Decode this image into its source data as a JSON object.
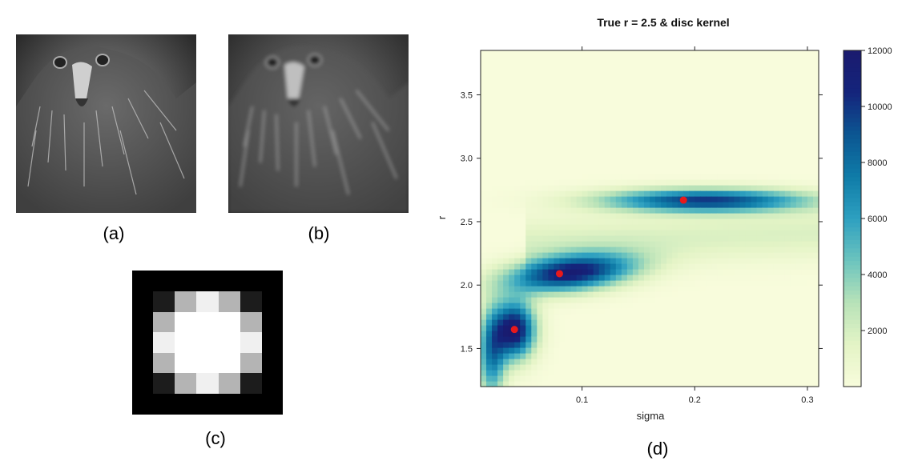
{
  "panels": {
    "a": {
      "caption": "(a)"
    },
    "b": {
      "caption": "(b)"
    },
    "c": {
      "caption": "(c)",
      "kernel_grid": [
        [
          "#1c1c1c",
          "#b4b4b4",
          "#f0f0f0",
          "#b4b4b4",
          "#1c1c1c"
        ],
        [
          "#b4b4b4",
          "#ffffff",
          "#ffffff",
          "#ffffff",
          "#b4b4b4"
        ],
        [
          "#f0f0f0",
          "#ffffff",
          "#ffffff",
          "#ffffff",
          "#f0f0f0"
        ],
        [
          "#b4b4b4",
          "#ffffff",
          "#ffffff",
          "#ffffff",
          "#b4b4b4"
        ],
        [
          "#1c1c1c",
          "#b4b4b4",
          "#f0f0f0",
          "#b4b4b4",
          "#1c1c1c"
        ]
      ]
    },
    "d": {
      "caption": "(d)"
    }
  },
  "chart_data": {
    "type": "heatmap",
    "title": "True r = 2.5 & disc kernel",
    "xlabel": "sigma",
    "ylabel": "r",
    "xlim": [
      0.01,
      0.31
    ],
    "ylim": [
      1.2,
      3.85
    ],
    "x_ticks": [
      "0.1",
      "0.2",
      "0.3"
    ],
    "x_tick_values": [
      0.1,
      0.2,
      0.3
    ],
    "y_ticks": [
      "1.5",
      "2.0",
      "2.5",
      "3.0",
      "3.5"
    ],
    "y_tick_values": [
      1.5,
      2.0,
      2.5,
      3.0,
      3.5
    ],
    "colorbar": {
      "ticks": [
        "2000",
        "4000",
        "6000",
        "8000",
        "10000",
        "12000"
      ],
      "tick_values": [
        2000,
        4000,
        6000,
        8000,
        10000,
        12000
      ],
      "min": 0,
      "max": 12000,
      "colors": [
        "#f8fcdc",
        "#e4f4c6",
        "#b8e2b8",
        "#6cc4be",
        "#2ea0c0",
        "#0f7ca8",
        "#0c5692",
        "#14257c",
        "#1a1a6e"
      ]
    },
    "modes": [
      {
        "sigma": 0.04,
        "r": 1.65,
        "peak": 12000
      },
      {
        "sigma": 0.08,
        "r": 2.09,
        "peak": 11200
      },
      {
        "sigma": 0.19,
        "r": 2.67,
        "peak": 9800
      }
    ],
    "points": [
      {
        "sigma": 0.04,
        "r": 1.65
      },
      {
        "sigma": 0.08,
        "r": 2.09
      },
      {
        "sigma": 0.19,
        "r": 2.67
      }
    ],
    "point_color": "#e8191b"
  }
}
